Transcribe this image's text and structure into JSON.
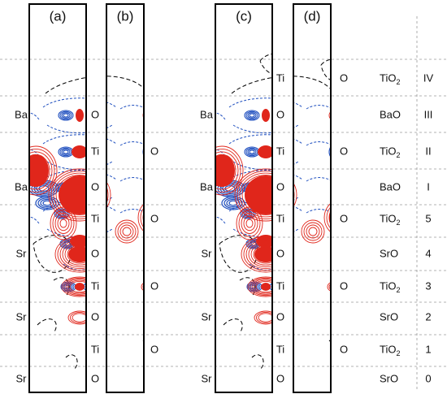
{
  "panels": [
    {
      "id": "a",
      "label": "(a)"
    },
    {
      "id": "b",
      "label": "(b)"
    },
    {
      "id": "c",
      "label": "(c)"
    },
    {
      "id": "d",
      "label": "(d)"
    }
  ],
  "left_atoms": [
    {
      "panel": "a",
      "level": "III",
      "atom": "Ba"
    },
    {
      "panel": "a",
      "level": "I",
      "atom": "Ba"
    },
    {
      "panel": "a",
      "level": "4",
      "atom": "Sr"
    },
    {
      "panel": "a",
      "level": "2",
      "atom": "Sr"
    },
    {
      "panel": "a",
      "level": "0",
      "atom": "Sr"
    },
    {
      "panel": "c",
      "level": "III",
      "atom": "Ba"
    },
    {
      "panel": "c",
      "level": "I",
      "atom": "Ba"
    },
    {
      "panel": "c",
      "level": "4",
      "atom": "Sr"
    },
    {
      "panel": "c",
      "level": "2",
      "atom": "Sr"
    },
    {
      "panel": "c",
      "level": "0",
      "atom": "Sr"
    }
  ],
  "center_atoms": [
    {
      "panel": "a",
      "level": "III",
      "atom": "O"
    },
    {
      "panel": "a",
      "level": "II",
      "atom": "Ti"
    },
    {
      "panel": "a",
      "level": "I",
      "atom": "O"
    },
    {
      "panel": "a",
      "level": "5",
      "atom": "Ti"
    },
    {
      "panel": "a",
      "level": "4",
      "atom": "O"
    },
    {
      "panel": "a",
      "level": "3",
      "atom": "Ti"
    },
    {
      "panel": "a",
      "level": "2",
      "atom": "O"
    },
    {
      "panel": "a",
      "level": "1",
      "atom": "Ti"
    },
    {
      "panel": "a",
      "level": "0",
      "atom": "O"
    },
    {
      "panel": "c",
      "level": "IV",
      "atom": "Ti"
    },
    {
      "panel": "c",
      "level": "III",
      "atom": "O"
    },
    {
      "panel": "c",
      "level": "II",
      "atom": "Ti"
    },
    {
      "panel": "c",
      "level": "I",
      "atom": "O"
    },
    {
      "panel": "c",
      "level": "5",
      "atom": "Ti"
    },
    {
      "panel": "c",
      "level": "4",
      "atom": "O"
    },
    {
      "panel": "c",
      "level": "3",
      "atom": "Ti"
    },
    {
      "panel": "c",
      "level": "2",
      "atom": "O"
    },
    {
      "panel": "c",
      "level": "1",
      "atom": "Ti"
    },
    {
      "panel": "c",
      "level": "0",
      "atom": "O"
    }
  ],
  "right_atoms": [
    {
      "panel": "b",
      "level": "II",
      "atom": "O"
    },
    {
      "panel": "b",
      "level": "5",
      "atom": "O"
    },
    {
      "panel": "b",
      "level": "3",
      "atom": "O"
    },
    {
      "panel": "b",
      "level": "1",
      "atom": "O"
    },
    {
      "panel": "d",
      "level": "IV",
      "atom": "O"
    },
    {
      "panel": "d",
      "level": "II",
      "atom": "O"
    },
    {
      "panel": "d",
      "level": "5",
      "atom": "O"
    },
    {
      "panel": "d",
      "level": "3",
      "atom": "O"
    },
    {
      "panel": "d",
      "level": "1",
      "atom": "O"
    }
  ],
  "layers": [
    {
      "level": "IV",
      "formula": "TiO",
      "subscript": "2"
    },
    {
      "level": "III",
      "formula": "BaO",
      "subscript": ""
    },
    {
      "level": "II",
      "formula": "TiO",
      "subscript": "2"
    },
    {
      "level": "I",
      "formula": "BaO",
      "subscript": ""
    },
    {
      "level": "5",
      "formula": "TiO",
      "subscript": "2"
    },
    {
      "level": "4",
      "formula": "SrO",
      "subscript": ""
    },
    {
      "level": "3",
      "formula": "TiO",
      "subscript": "2"
    },
    {
      "level": "2",
      "formula": "SrO",
      "subscript": ""
    },
    {
      "level": "1",
      "formula": "TiO",
      "subscript": "2"
    },
    {
      "level": "0",
      "formula": "SrO",
      "subscript": ""
    }
  ],
  "colors": {
    "positive_contour": "#e0261b",
    "negative_contour": "#1f4fbf",
    "zero_contour": "#000000",
    "guide_line": "#9a9a9a"
  }
}
